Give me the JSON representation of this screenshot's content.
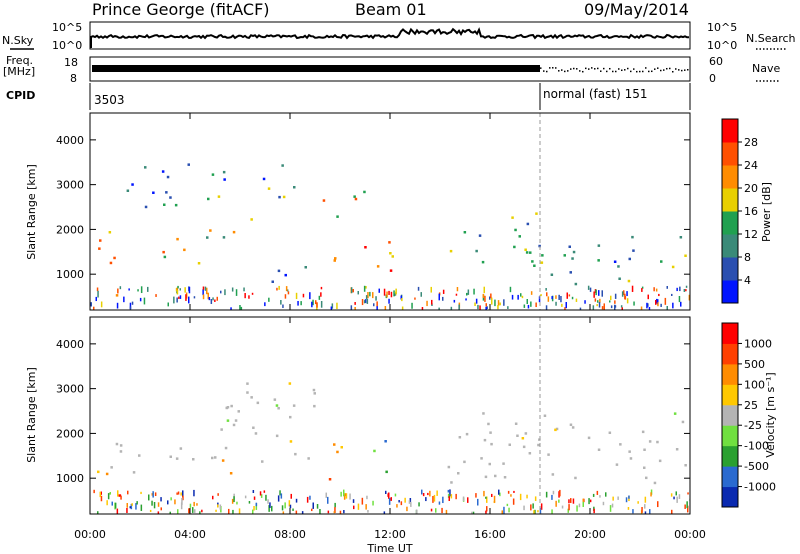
{
  "header": {
    "station": "Prince George (fitACF)",
    "beam": "Beam 01",
    "date": "09/May/2014"
  },
  "strip": {
    "nsky_label": "N.Sky",
    "nsearch_label": "N.Search",
    "noise_ticks_left": [
      "10^5",
      "10^0"
    ],
    "noise_ticks_right": [
      "10^5",
      "10^0"
    ],
    "freq_label_1": "Freq.",
    "freq_label_2": "[MHz]",
    "freq_ticks": [
      "18",
      "8"
    ],
    "nave_ticks": [
      "60",
      "0"
    ],
    "nave_label": "Nave",
    "cpid_label": "CPID",
    "cpid_1": "3503",
    "cpid_2": "normal (fast) 151",
    "cpid_change_hour": 18.0
  },
  "chart_data": [
    {
      "type": "heatmap",
      "name": "power",
      "ylabel": "Slant Range [km]",
      "xlim": [
        0,
        24
      ],
      "ylim": [
        200,
        4600
      ],
      "yticks": [
        "1000",
        "2000",
        "3000",
        "4000"
      ],
      "colorbar": {
        "label": "Power [dB]",
        "ticks": [
          "4",
          "8",
          "12",
          "16",
          "20",
          "24",
          "28"
        ],
        "colors": [
          "#0014ff",
          "#2a4fb0",
          "#3a8a78",
          "#20a050",
          "#e8d000",
          "#ff8c00",
          "#ff5000",
          "#ff0000"
        ]
      },
      "echo_bands": [
        {
          "t0": 0.3,
          "t1": 2.0,
          "r0": 1100,
          "r1": 2000,
          "level": 0.72
        },
        {
          "t0": 0.9,
          "t1": 1.7,
          "r0": 350,
          "r1": 650,
          "level": 0.8
        },
        {
          "t0": 2.0,
          "t1": 4.5,
          "r0": 1250,
          "r1": 1900,
          "level": 0.6
        },
        {
          "t0": 1.0,
          "t1": 5.5,
          "r0": 2500,
          "r1": 3500,
          "level": 0.3
        },
        {
          "t0": 4.5,
          "t1": 6.5,
          "r0": 1800,
          "r1": 2800,
          "level": 0.4
        },
        {
          "t0": 6.3,
          "t1": 8.2,
          "r0": 2600,
          "r1": 3500,
          "level": 0.3
        },
        {
          "t0": 6.8,
          "t1": 9.0,
          "r0": 800,
          "r1": 1400,
          "level": 0.25
        },
        {
          "t0": 9.3,
          "t1": 11.2,
          "r0": 2100,
          "r1": 2900,
          "level": 0.55
        },
        {
          "t0": 9.5,
          "t1": 12.2,
          "r0": 950,
          "r1": 1800,
          "level": 0.75
        },
        {
          "t0": 14.0,
          "t1": 18.0,
          "r0": 1200,
          "r1": 2500,
          "level": 0.35
        },
        {
          "t0": 18.0,
          "t1": 24.0,
          "r0": 800,
          "r1": 1900,
          "level": 0.35
        }
      ]
    },
    {
      "type": "heatmap",
      "name": "velocity",
      "ylabel": "Slant Range [km]",
      "xlabel": "Time UT",
      "xlim": [
        0,
        24
      ],
      "ylim": [
        200,
        4600
      ],
      "xticks": [
        "00:00",
        "04:00",
        "08:00",
        "12:00",
        "16:00",
        "20:00",
        "00:00"
      ],
      "yticks": [
        "1000",
        "2000",
        "3000",
        "4000"
      ],
      "colorbar": {
        "label": "Velocity [m s⁻¹]",
        "ticks": [
          "1000",
          "500",
          "100",
          "25",
          "-25",
          "-100",
          "-500",
          "-1000"
        ],
        "colors": [
          "#0a2ab0",
          "#2a6ad0",
          "#2aa030",
          "#70e040",
          "#b4b4b4",
          "#ffc800",
          "#ff8c00",
          "#ff4000",
          "#ff0000"
        ]
      },
      "echo_bands": [
        {
          "t0": 0.2,
          "t1": 4.0,
          "r0": 1100,
          "r1": 1900,
          "level": "ground"
        },
        {
          "t0": 0.2,
          "t1": 1.0,
          "r0": 1100,
          "r1": 1600,
          "level": "neg"
        },
        {
          "t0": 0.9,
          "t1": 1.8,
          "r0": 350,
          "r1": 650,
          "level": "neg"
        },
        {
          "t0": 4.0,
          "t1": 9.0,
          "r0": 1300,
          "r1": 3200,
          "level": "ground"
        },
        {
          "t0": 5.0,
          "t1": 6.0,
          "r0": 1100,
          "r1": 1600,
          "level": "neg"
        },
        {
          "t0": 9.5,
          "t1": 11.0,
          "r0": 1000,
          "r1": 1800,
          "level": "neg"
        },
        {
          "t0": 11.0,
          "t1": 12.3,
          "r0": 1100,
          "r1": 1900,
          "level": "pos"
        },
        {
          "t0": 14.0,
          "t1": 24.0,
          "r0": 900,
          "r1": 2500,
          "level": "ground"
        }
      ]
    }
  ]
}
